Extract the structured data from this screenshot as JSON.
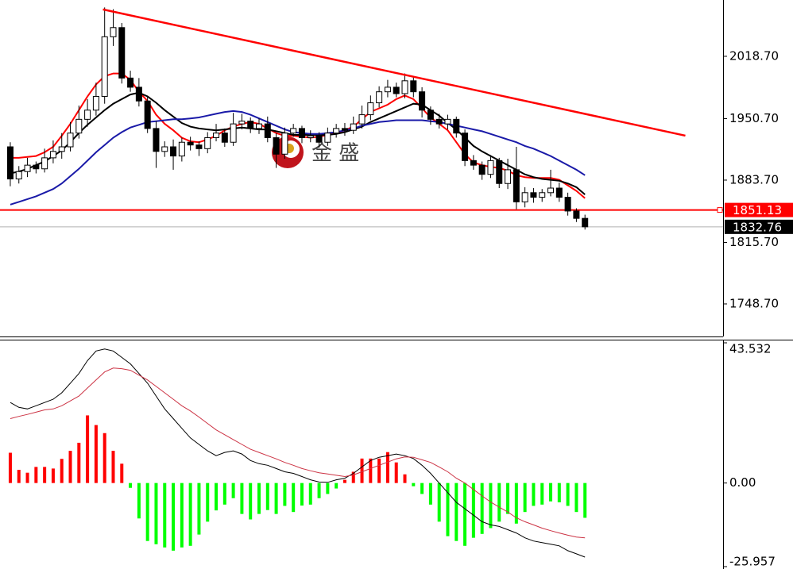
{
  "chart_data": [
    {
      "type": "candlestick",
      "open": [
        1920,
        1885,
        1893,
        1900,
        1896,
        1908,
        1915,
        1920,
        1935,
        1950,
        1960,
        1975,
        2040,
        2050,
        1995,
        1985,
        1970,
        1940,
        1915,
        1920,
        1910,
        1925,
        1922,
        1918,
        1930,
        1935,
        1925,
        1945,
        1948,
        1940,
        1945,
        1930,
        1912,
        1935,
        1940,
        1930,
        1932,
        1925,
        1935,
        1940,
        1938,
        1945,
        1955,
        1968,
        1980,
        1985,
        1978,
        1992,
        1980,
        1960,
        1950,
        1945,
        1950,
        1935,
        1905,
        1900,
        1890,
        1905,
        1880,
        1895,
        1860,
        1870,
        1865,
        1870,
        1875,
        1865,
        1850,
        1842
      ],
      "high": [
        1925,
        1899,
        1908,
        1904,
        1918,
        1927,
        1935,
        1947,
        1965,
        1972,
        1990,
        2072,
        2070,
        2055,
        2003,
        1995,
        1975,
        1948,
        1926,
        1928,
        1930,
        1931,
        1926,
        1936,
        1945,
        1940,
        1957,
        1956,
        1952,
        1951,
        1953,
        1935,
        1941,
        1945,
        1943,
        1938,
        1936,
        1941,
        1945,
        1946,
        1953,
        1965,
        1976,
        1986,
        1993,
        1990,
        2000,
        1996,
        1985,
        1964,
        1956,
        1955,
        1953,
        1939,
        1911,
        1904,
        1911,
        1908,
        1907,
        1920,
        1876,
        1875,
        1874,
        1895,
        1881,
        1870,
        1853,
        1846
      ],
      "low": [
        1877,
        1880,
        1887,
        1891,
        1892,
        1902,
        1907,
        1915,
        1929,
        1942,
        1954,
        1967,
        2030,
        1989,
        1980,
        1964,
        1935,
        1897,
        1909,
        1895,
        1904,
        1916,
        1910,
        1913,
        1926,
        1920,
        1921,
        1939,
        1935,
        1934,
        1925,
        1897,
        1907,
        1931,
        1924,
        1925,
        1919,
        1921,
        1930,
        1932,
        1934,
        1940,
        1949,
        1963,
        1974,
        1974,
        1973,
        1974,
        1952,
        1944,
        1940,
        1939,
        1930,
        1899,
        1895,
        1884,
        1886,
        1875,
        1874,
        1852,
        1854,
        1859,
        1860,
        1866,
        1860,
        1845,
        1838,
        1829.76
      ],
      "close": [
        1885,
        1893,
        1900,
        1896,
        1908,
        1915,
        1920,
        1935,
        1950,
        1960,
        1975,
        2040,
        2050,
        1995,
        1985,
        1970,
        1940,
        1915,
        1920,
        1910,
        1925,
        1922,
        1918,
        1930,
        1935,
        1925,
        1945,
        1948,
        1940,
        1945,
        1930,
        1912,
        1935,
        1940,
        1930,
        1932,
        1925,
        1935,
        1940,
        1938,
        1945,
        1955,
        1968,
        1980,
        1985,
        1978,
        1992,
        1980,
        1960,
        1950,
        1945,
        1950,
        1935,
        1905,
        1900,
        1890,
        1905,
        1880,
        1895,
        1860,
        1870,
        1865,
        1870,
        1875,
        1865,
        1850,
        1842,
        1832.76
      ],
      "series": [
        {
          "color": "#ff0000",
          "values": [
            1908,
            1908,
            1909,
            1910,
            1914,
            1920,
            1932,
            1945,
            1960,
            1975,
            1988,
            1997,
            2000,
            2000,
            1993,
            1980,
            1970,
            1955,
            1945,
            1938,
            1930,
            1926,
            1925,
            1928,
            1932,
            1938,
            1942,
            1945,
            1947,
            1945,
            1940,
            1935,
            1932,
            1932,
            1931,
            1930,
            1931,
            1933,
            1935,
            1938,
            1942,
            1950,
            1958,
            1962,
            1966,
            1972,
            1976,
            1972,
            1962,
            1952,
            1945,
            1938,
            1925,
            1912,
            1903,
            1900,
            1898,
            1897,
            1894,
            1889,
            1887,
            1886,
            1886,
            1886,
            1884,
            1878,
            1872,
            1864
          ]
        },
        {
          "color": "#000000",
          "values": [
            1891,
            1893,
            1896,
            1900,
            1904,
            1910,
            1916,
            1925,
            1935,
            1944,
            1952,
            1960,
            1967,
            1972,
            1977,
            1979,
            1975,
            1968,
            1960,
            1953,
            1946,
            1942,
            1940,
            1939,
            1938,
            1939,
            1940,
            1941,
            1940,
            1939,
            1939,
            1937,
            1935,
            1933,
            1933,
            1933,
            1933,
            1933,
            1934,
            1936,
            1939,
            1942,
            1947,
            1951,
            1955,
            1959,
            1963,
            1967,
            1966,
            1960,
            1954,
            1946,
            1939,
            1930,
            1921,
            1915,
            1910,
            1905,
            1900,
            1895,
            1890,
            1887,
            1885,
            1884,
            1883,
            1880,
            1876,
            1868
          ]
        },
        {
          "color": "#1a1aa8",
          "values": [
            1857,
            1860,
            1863,
            1866,
            1870,
            1874,
            1880,
            1888,
            1896,
            1905,
            1914,
            1922,
            1930,
            1936,
            1941,
            1944,
            1947,
            1948,
            1949,
            1950,
            1950,
            1951,
            1952,
            1954,
            1956,
            1958,
            1959,
            1958,
            1955,
            1951,
            1947,
            1943,
            1939,
            1936,
            1935,
            1934,
            1934,
            1935,
            1936,
            1938,
            1940,
            1943,
            1945,
            1947,
            1948,
            1949,
            1949,
            1949,
            1949,
            1948,
            1947,
            1945,
            1943,
            1941,
            1939,
            1937,
            1934,
            1931,
            1928,
            1925,
            1921,
            1918,
            1914,
            1910,
            1905,
            1900,
            1895,
            1889
          ]
        }
      ],
      "up_color": "#ffffff",
      "down_color": "#000000",
      "trendline": {
        "color": "#ff0000",
        "start": [
          10.8,
          2069.8
        ],
        "end": [
          78.7,
          1932.2
        ]
      },
      "price_lines": [
        {
          "value": 1851.13,
          "color": "#ff0000"
        },
        {
          "value": 1832.76,
          "color": "#000000"
        }
      ],
      "watermark": "金 盛",
      "xlim": [
        -1.2,
        83.1
      ],
      "ylim": [
        1713.2,
        2080.1
      ],
      "yticks": [
        {
          "value": 1748.7,
          "label": "1748.70"
        },
        {
          "value": 1815.7,
          "label": "1815.70"
        },
        {
          "value": 1883.7,
          "label": "1883.70"
        },
        {
          "value": 1950.7,
          "label": "1950.70"
        },
        {
          "value": 2018.7,
          "label": "2018.70"
        }
      ]
    },
    {
      "type": "macd",
      "histogram": {
        "up_color": "#ff0000",
        "down_color": "#00ff00",
        "values": [
          9.4,
          4.1,
          3.2,
          5,
          5,
          4.5,
          7.5,
          10,
          12.5,
          21,
          18,
          15.5,
          10,
          6,
          -1.5,
          -11,
          -18,
          -19,
          -20,
          -21,
          -20,
          -19.5,
          -16,
          -12,
          -8.5,
          -6.7,
          -4.7,
          -9.6,
          -11.3,
          -9.6,
          -8.4,
          -9.6,
          -7.1,
          -9,
          -7,
          -6.7,
          -4.7,
          -3.4,
          -1.7,
          1,
          3.5,
          7.6,
          7.6,
          7.6,
          9.6,
          6.4,
          2.7,
          -1,
          -3.4,
          -6.7,
          -12,
          -16.5,
          -18,
          -19.5,
          -17,
          -15.8,
          -14,
          -12,
          -9.6,
          -12.6,
          -9,
          -7.1,
          -6.7,
          -5.7,
          -6,
          -7.1,
          -9,
          -10.8
        ]
      },
      "series": [
        {
          "color": "#000000",
          "values": [
            25,
            23.5,
            23,
            24,
            25,
            26,
            28,
            31,
            34,
            38,
            41,
            41.6,
            41,
            39,
            37,
            34,
            31,
            27,
            23,
            20,
            17,
            14,
            12,
            10,
            8.5,
            9.5,
            10,
            9,
            7,
            6,
            5.5,
            4.5,
            3.5,
            3,
            2,
            1,
            0.3,
            0.2,
            1,
            1.5,
            3,
            5,
            7,
            8,
            8.5,
            9,
            8.5,
            7.6,
            5.5,
            3,
            0,
            -3,
            -6,
            -8,
            -10,
            -12,
            -13,
            -13.5,
            -14.5,
            -15.5,
            -17,
            -18,
            -18.5,
            -19,
            -19.5,
            -21,
            -22,
            -23
          ]
        },
        {
          "color": "#cc3344",
          "values": [
            20,
            20.7,
            21.3,
            22,
            22.7,
            23,
            24,
            25.5,
            27,
            29.5,
            32,
            34.5,
            35.7,
            35.5,
            35,
            33.5,
            32,
            30,
            28,
            26,
            24,
            22.4,
            20.5,
            18.5,
            16.5,
            15,
            13.5,
            12,
            10.5,
            9.5,
            8.5,
            7.5,
            6.4,
            5.5,
            4.5,
            3.8,
            3.2,
            2.8,
            2.4,
            2,
            2.5,
            3.5,
            4.5,
            5.5,
            6.5,
            7.5,
            8.1,
            8,
            7.2,
            6.4,
            5,
            3.5,
            1.5,
            0,
            -2,
            -4,
            -5.9,
            -7.5,
            -9,
            -10.8,
            -12,
            -13,
            -14,
            -14.8,
            -15.5,
            -16.2,
            -16.8,
            -17
          ]
        }
      ],
      "xlim": [
        -1.2,
        83.1
      ],
      "ylim": [
        -25.957,
        43.532
      ],
      "yticks": [
        43.532,
        {
          "value": 0,
          "label": "0.00"
        },
        -25.957
      ]
    }
  ]
}
